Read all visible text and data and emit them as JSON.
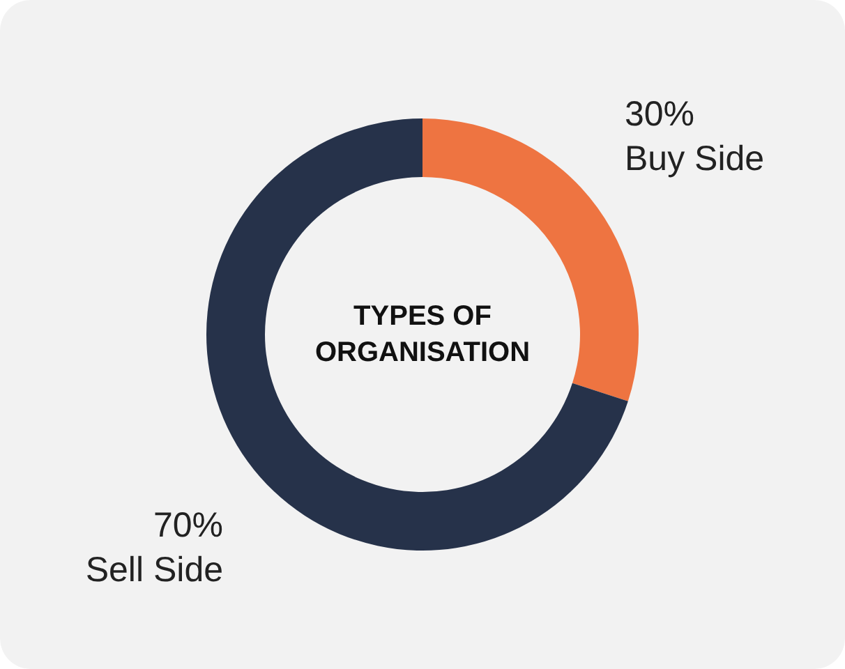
{
  "chart_data": {
    "type": "donut",
    "title": "TYPES OF ORGANISATION",
    "categories": [
      "Buy Side",
      "Sell Side"
    ],
    "values": [
      30,
      70
    ],
    "colors": [
      "#ee7441",
      "#26324a"
    ],
    "value_labels": [
      "30%",
      "70%"
    ]
  }
}
